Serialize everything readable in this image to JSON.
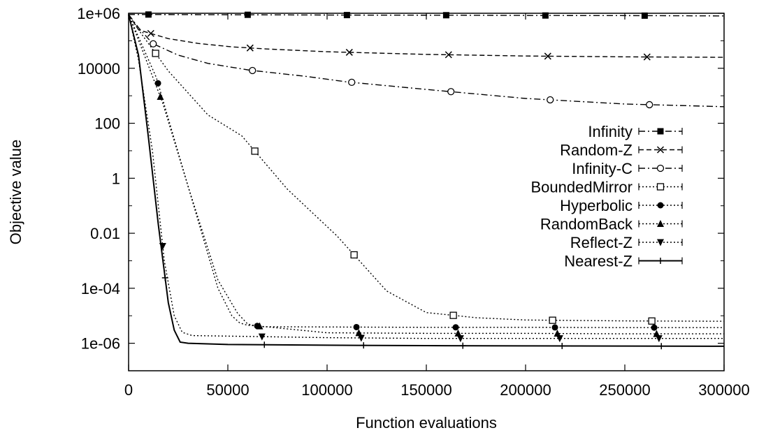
{
  "chart_data": {
    "type": "line",
    "title": "",
    "xlabel": "Function evaluations",
    "ylabel": "Objective value",
    "x_scale": "linear",
    "y_scale": "log",
    "xlim": [
      0,
      300000
    ],
    "ylim": [
      1e-07,
      1000000
    ],
    "x_ticks": [
      {
        "value": 0,
        "label": "0"
      },
      {
        "value": 50000,
        "label": "50000"
      },
      {
        "value": 100000,
        "label": "100000"
      },
      {
        "value": 150000,
        "label": "150000"
      },
      {
        "value": 200000,
        "label": "200000"
      },
      {
        "value": 250000,
        "label": "250000"
      },
      {
        "value": 300000,
        "label": "300000"
      }
    ],
    "y_ticks": [
      {
        "value": 1e-06,
        "label": "1e-06"
      },
      {
        "value": 0.0001,
        "label": "1e-04"
      },
      {
        "value": 0.01,
        "label": "0.01"
      },
      {
        "value": 1,
        "label": "1"
      },
      {
        "value": 100,
        "label": "100"
      },
      {
        "value": 10000,
        "label": "10000"
      },
      {
        "value": 1000000,
        "label": "1e+06"
      }
    ],
    "legend_position": "right, lower middle",
    "series": [
      {
        "name": "Infinity",
        "marker": "filled-square",
        "dash": "dash-dot",
        "x": [
          0,
          10000,
          60000,
          110000,
          160000,
          210000,
          260000,
          300000
        ],
        "y": [
          900000,
          900000,
          880000,
          860000,
          850000,
          830000,
          820000,
          800000
        ]
      },
      {
        "name": "Random-Z",
        "marker": "x",
        "dash": "dash",
        "x": [
          0,
          5000,
          20000,
          35000,
          52000,
          70000,
          100000,
          150000,
          200000,
          250000,
          300000
        ],
        "y": [
          900000,
          250000,
          120000,
          80000,
          60000,
          50000,
          40000,
          32000,
          28000,
          26000,
          25000
        ]
      },
      {
        "name": "Infinity-C",
        "marker": "circle",
        "dash": "dash-dot",
        "x": [
          0,
          5000,
          12000,
          25000,
          40000,
          61000,
          90000,
          110000,
          150000,
          200000,
          250000,
          300000
        ],
        "y": [
          900000,
          300000,
          80000,
          30000,
          15000,
          8500,
          5000,
          3200,
          1700,
          800,
          500,
          400
        ]
      },
      {
        "name": "BoundedMirror",
        "marker": "open-square",
        "dash": "dotted",
        "x": [
          0,
          5000,
          20000,
          40000,
          57000,
          80000,
          105000,
          130000,
          150000,
          155000,
          175000,
          200000,
          250000,
          300000
        ],
        "y": [
          900000,
          250000,
          8000,
          200,
          35,
          0.4,
          0.008,
          8e-05,
          1.3e-05,
          1.2e-05,
          8.5e-06,
          7e-06,
          6.5e-06,
          6.3e-06
        ]
      },
      {
        "name": "Hyperbolic",
        "marker": "filled-circle",
        "dash": "dotted",
        "x": [
          0,
          14000,
          30000,
          45000,
          55000,
          60000,
          63000,
          67000,
          100000,
          150000,
          200000,
          250000,
          300000
        ],
        "y": [
          900000,
          4500,
          0.5,
          0.0002,
          1.2e-05,
          5e-06,
          4.5e-06,
          4e-06,
          3.9e-06,
          3.8e-06,
          3.8e-06,
          3.7e-06,
          3.7e-06
        ]
      },
      {
        "name": "RandomBack",
        "marker": "filled-triangle-up",
        "dash": "dotted",
        "x": [
          0,
          17000,
          30000,
          45000,
          52000,
          56000,
          60000,
          66000,
          100000,
          150000,
          200000,
          250000,
          300000
        ],
        "y": [
          900000,
          600,
          0.5,
          0.0001,
          1e-05,
          5.5e-06,
          4.5e-06,
          4.2e-06,
          2.4e-06,
          2.3e-06,
          2.3e-06,
          2.2e-06,
          2.2e-06
        ]
      },
      {
        "name": "Reflect-Z",
        "marker": "filled-triangle-down",
        "dash": "dotted",
        "x": [
          0,
          5000,
          12000,
          18000,
          23000,
          27000,
          32000,
          55000,
          100000,
          150000,
          200000,
          250000,
          300000
        ],
        "y": [
          900000,
          20000,
          10,
          0.001,
          1e-05,
          2.5e-06,
          1.9e-06,
          1.8e-06,
          1.6e-06,
          1.5e-06,
          1.5e-06,
          1.5e-06,
          1.5e-06
        ]
      },
      {
        "name": "Nearest-Z",
        "marker": "plus",
        "dash": "solid",
        "x": [
          0,
          5000,
          10000,
          15000,
          20000,
          23000,
          26000,
          30000,
          50000,
          100000,
          150000,
          200000,
          250000,
          300000
        ],
        "y": [
          900000,
          30000,
          30,
          0.02,
          3e-05,
          3e-06,
          1.1e-06,
          1e-06,
          9e-07,
          8.5e-07,
          8.2e-07,
          8e-07,
          7.9e-07,
          7.8e-07
        ]
      }
    ]
  }
}
